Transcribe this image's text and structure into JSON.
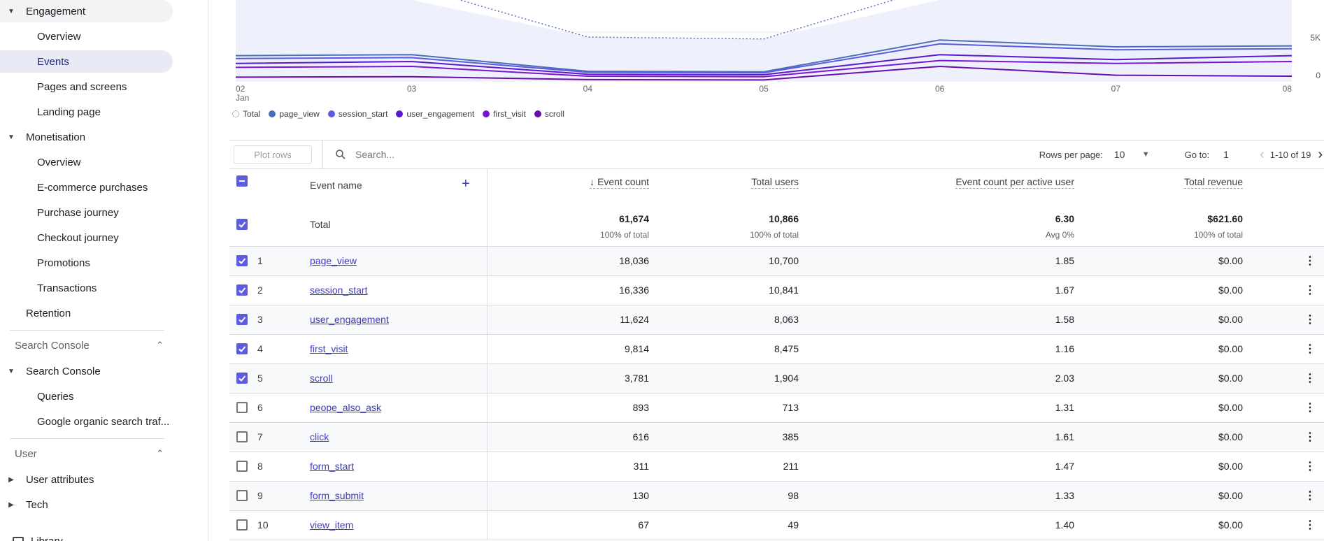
{
  "sidebar": {
    "engagement": "Engagement",
    "eng_items": [
      "Overview",
      "Events",
      "Pages and screens",
      "Landing page"
    ],
    "monetisation": "Monetisation",
    "mon_items": [
      "Overview",
      "E-commerce purchases",
      "Purchase journey",
      "Checkout journey",
      "Promotions",
      "Transactions"
    ],
    "retention": "Retention",
    "sc_section": "Search Console",
    "sc_group": "Search Console",
    "sc_items": [
      "Queries",
      "Google organic search traf..."
    ],
    "user_section": "User",
    "user_items": [
      "User attributes",
      "Tech"
    ],
    "library": "Library"
  },
  "chart": {
    "x_ticks": [
      "02",
      "03",
      "04",
      "05",
      "06",
      "07",
      "08"
    ],
    "x_month": "Jan",
    "y_ticks": [
      "5K",
      "0"
    ],
    "legend": [
      {
        "label": "Total",
        "color": "#5c6bc0",
        "style": "dotted"
      },
      {
        "label": "page_view",
        "color": "#4a6fb8"
      },
      {
        "label": "session_start",
        "color": "#5b5be0"
      },
      {
        "label": "user_engagement",
        "color": "#5a18d0"
      },
      {
        "label": "first_visit",
        "color": "#7a14d6"
      },
      {
        "label": "scroll",
        "color": "#6a0dad"
      }
    ]
  },
  "chart_data": {
    "type": "line",
    "x": [
      "02 Jan",
      "03",
      "04",
      "05",
      "06",
      "07",
      "08"
    ],
    "series": [
      {
        "name": "Total",
        "values": [
          11200,
          12000,
          4500,
          4300,
          16500,
          16500,
          16500
        ]
      },
      {
        "name": "page_view",
        "values": [
          2600,
          2700,
          1000,
          950,
          4200,
          3500,
          3600
        ]
      },
      {
        "name": "session_start",
        "values": [
          2300,
          2400,
          900,
          850,
          3800,
          3200,
          3300
        ]
      },
      {
        "name": "user_engagement",
        "values": [
          1800,
          2000,
          700,
          650,
          2700,
          2200,
          2600
        ]
      },
      {
        "name": "first_visit",
        "values": [
          1400,
          1500,
          500,
          450,
          2100,
          1800,
          2000
        ]
      },
      {
        "name": "scroll",
        "values": [
          400,
          450,
          150,
          120,
          1500,
          600,
          500
        ]
      }
    ]
  },
  "toolbar": {
    "plot_rows": "Plot rows",
    "search_placeholder": "Search...",
    "rows_per_page_label": "Rows per page:",
    "rows_per_page": "10",
    "go_to_label": "Go to:",
    "go_to": "1",
    "pager": "1-10 of 19"
  },
  "table": {
    "headers": {
      "event_name": "Event name",
      "event_count": "Event count",
      "total_users": "Total users",
      "ecpau": "Event count per active user",
      "total_revenue": "Total revenue"
    },
    "total": {
      "label": "Total",
      "event_count": "61,674",
      "event_count_sub": "100% of total",
      "total_users": "10,866",
      "total_users_sub": "100% of total",
      "ecpau": "6.30",
      "ecpau_sub": "Avg 0%",
      "total_revenue": "$621.60",
      "total_revenue_sub": "100% of total"
    },
    "rows": [
      {
        "idx": "1",
        "name": "page_view",
        "event_count": "18,036",
        "total_users": "10,700",
        "ecpau": "1.85",
        "revenue": "$0.00",
        "checked": true
      },
      {
        "idx": "2",
        "name": "session_start",
        "event_count": "16,336",
        "total_users": "10,841",
        "ecpau": "1.67",
        "revenue": "$0.00",
        "checked": true
      },
      {
        "idx": "3",
        "name": "user_engagement",
        "event_count": "11,624",
        "total_users": "8,063",
        "ecpau": "1.58",
        "revenue": "$0.00",
        "checked": true
      },
      {
        "idx": "4",
        "name": "first_visit",
        "event_count": "9,814",
        "total_users": "8,475",
        "ecpau": "1.16",
        "revenue": "$0.00",
        "checked": true
      },
      {
        "idx": "5",
        "name": "scroll",
        "event_count": "3,781",
        "total_users": "1,904",
        "ecpau": "2.03",
        "revenue": "$0.00",
        "checked": true
      },
      {
        "idx": "6",
        "name": "peope_also_ask",
        "event_count": "893",
        "total_users": "713",
        "ecpau": "1.31",
        "revenue": "$0.00",
        "checked": false
      },
      {
        "idx": "7",
        "name": "click",
        "event_count": "616",
        "total_users": "385",
        "ecpau": "1.61",
        "revenue": "$0.00",
        "checked": false
      },
      {
        "idx": "8",
        "name": "form_start",
        "event_count": "311",
        "total_users": "211",
        "ecpau": "1.47",
        "revenue": "$0.00",
        "checked": false
      },
      {
        "idx": "9",
        "name": "form_submit",
        "event_count": "130",
        "total_users": "98",
        "ecpau": "1.33",
        "revenue": "$0.00",
        "checked": false
      },
      {
        "idx": "10",
        "name": "view_item",
        "event_count": "67",
        "total_users": "49",
        "ecpau": "1.40",
        "revenue": "$0.00",
        "checked": false
      }
    ]
  }
}
